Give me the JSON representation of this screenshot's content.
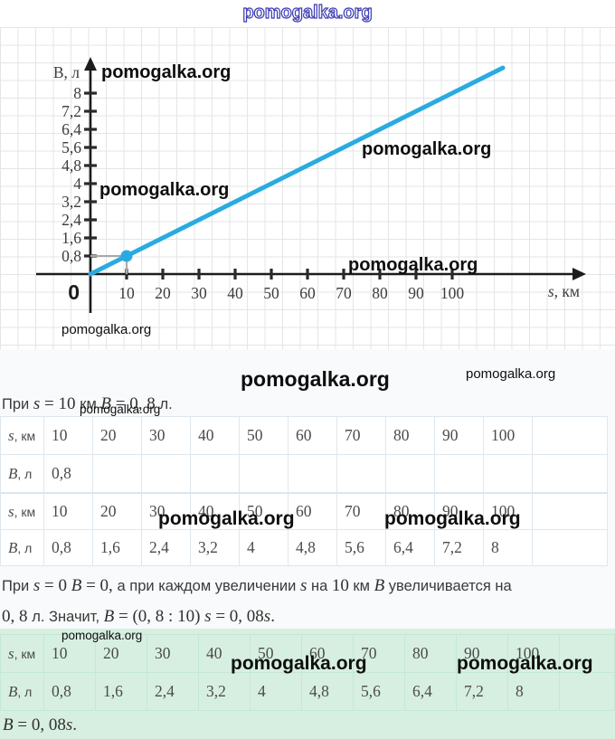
{
  "watermark": {
    "text": "pomogalka.org"
  },
  "colors": {
    "line_blue": "#29abe2",
    "watermark_blue": "#3c3cb4",
    "green_bg": "#d7efe1",
    "axis_black": "#1c1c1c",
    "guide_gray": "#a8a8a8"
  },
  "chart_data": {
    "type": "line",
    "title": "",
    "x_axis": {
      "label_var": "s",
      "label_unit": ", км",
      "ticks": [
        10,
        20,
        30,
        40,
        50,
        60,
        70,
        80,
        90,
        100
      ],
      "range": [
        0,
        114
      ]
    },
    "y_axis": {
      "label": "В, л",
      "tick_labels": [
        "0,8",
        "1,6",
        "2,4",
        "3,2",
        "4",
        "4,8",
        "5,6",
        "6,4",
        "7,2",
        "8"
      ],
      "tick_values": [
        0.8,
        1.6,
        2.4,
        3.2,
        4,
        4.8,
        5.6,
        6.4,
        7.2,
        8
      ],
      "range": [
        0,
        9.2
      ]
    },
    "origin_label": "0",
    "grid": true,
    "series": [
      {
        "name": "B = 0,08s",
        "slope": 0.08,
        "points": [
          [
            0,
            0
          ],
          [
            10,
            0.8
          ],
          [
            20,
            1.6
          ],
          [
            30,
            2.4
          ],
          [
            40,
            3.2
          ],
          [
            50,
            4
          ],
          [
            60,
            4.8
          ],
          [
            70,
            5.6
          ],
          [
            80,
            6.4
          ],
          [
            90,
            7.2
          ],
          [
            100,
            8
          ]
        ],
        "line_extends_to_km": 114,
        "color": "#29abe2"
      }
    ],
    "marked_point": {
      "s": 10,
      "B": 0.8
    }
  },
  "texts": {
    "intro": [
      [
        "При ",
        "r"
      ],
      [
        "s",
        "m"
      ],
      [
        " = 10 ",
        "n"
      ],
      [
        "км ",
        "r"
      ],
      [
        "B",
        "m"
      ],
      [
        " = 0, 8 ",
        "n"
      ],
      [
        "л.",
        "r"
      ]
    ],
    "para_line1": [
      [
        "При ",
        "r"
      ],
      [
        "s",
        "m"
      ],
      [
        " = 0 ",
        "n"
      ],
      [
        "B",
        "m"
      ],
      [
        " = 0, ",
        "n"
      ],
      [
        "а при каждом увеличении ",
        "r"
      ],
      [
        "s",
        "m"
      ],
      [
        " на ",
        "r"
      ],
      [
        "10",
        "n"
      ],
      [
        " км ",
        "r"
      ],
      [
        "B",
        "m"
      ],
      [
        " увеличивается на",
        "r"
      ]
    ],
    "para_line2": [
      [
        "0, 8 ",
        "n"
      ],
      [
        "л. Значит, ",
        "r"
      ],
      [
        "B",
        "m"
      ],
      [
        " = (0, 8 : 10) ",
        "n"
      ],
      [
        "s",
        "m"
      ],
      [
        " = 0, 08",
        "n"
      ],
      [
        "s",
        "m"
      ],
      [
        ".",
        "n"
      ]
    ],
    "final_formula": [
      [
        "B",
        "m"
      ],
      [
        " = 0, 08",
        "n"
      ],
      [
        "s",
        "m"
      ],
      [
        ".",
        "n"
      ]
    ]
  },
  "tables": {
    "table1": {
      "rows": [
        {
          "label": {
            "var": "s",
            "unit": ", км"
          },
          "values": [
            "10",
            "20",
            "30",
            "40",
            "50",
            "60",
            "70",
            "80",
            "90",
            "100"
          ]
        },
        {
          "label": {
            "var": "B",
            "unit": ", л"
          },
          "values": [
            "0,8",
            "",
            "",
            "",
            "",
            "",
            "",
            "",
            "",
            ""
          ]
        }
      ]
    },
    "table2": {
      "rows": [
        {
          "label": {
            "var": "s",
            "unit": ", км"
          },
          "values": [
            "10",
            "20",
            "30",
            "40",
            "50",
            "60",
            "70",
            "80",
            "90",
            "100"
          ]
        },
        {
          "label": {
            "var": "B",
            "unit": ", л"
          },
          "values": [
            "0,8",
            "1,6",
            "2,4",
            "3,2",
            "4",
            "4,8",
            "5,6",
            "6,4",
            "7,2",
            "8"
          ]
        }
      ]
    },
    "table3": {
      "rows": [
        {
          "label": {
            "var": "s",
            "unit": ", км"
          },
          "values": [
            "10",
            "20",
            "30",
            "40",
            "50",
            "60",
            "70",
            "80",
            "90",
            "100"
          ]
        },
        {
          "label": {
            "var": "B",
            "unit": ", л"
          },
          "values": [
            "0,8",
            "1,6",
            "2,4",
            "3,2",
            "4",
            "4,8",
            "5,6",
            "6,4",
            "7,2",
            "8"
          ]
        }
      ]
    }
  }
}
